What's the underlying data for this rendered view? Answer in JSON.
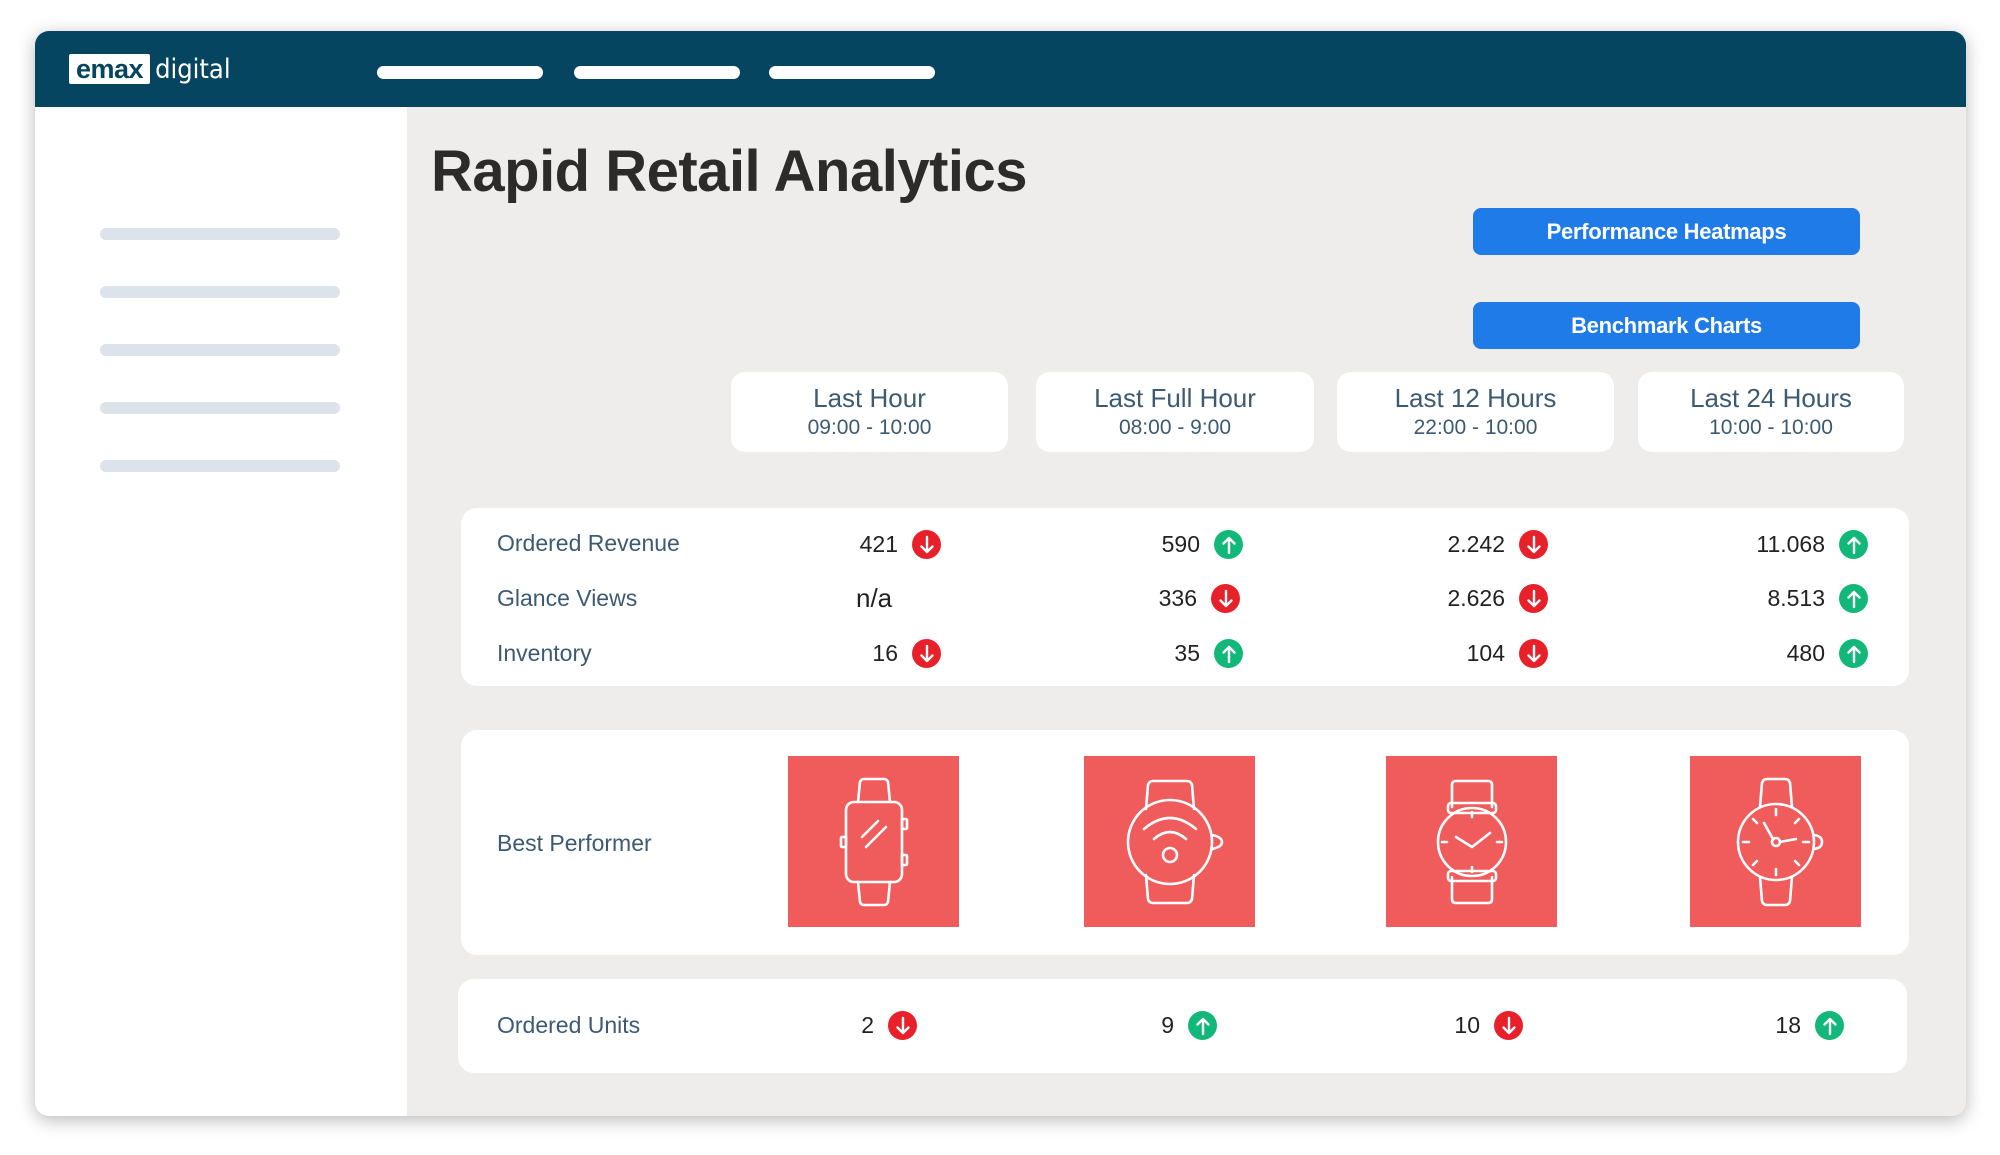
{
  "brand": {
    "logo_primary": "emax",
    "logo_secondary": "digital"
  },
  "page": {
    "title": "Rapid Retail Analytics"
  },
  "buttons": {
    "heatmaps": "Performance Heatmaps",
    "benchmarks": "Benchmark Charts"
  },
  "columns": [
    {
      "label": "Last Hour",
      "range": "09:00 - 10:00"
    },
    {
      "label": "Last Full Hour",
      "range": "08:00 - 9:00"
    },
    {
      "label": "Last 12 Hours",
      "range": "22:00 - 10:00"
    },
    {
      "label": "Last 24 Hours",
      "range": "10:00 - 10:00"
    }
  ],
  "metrics": {
    "ordered_revenue": {
      "label": "Ordered Revenue",
      "values": [
        "421",
        "590",
        "2.242",
        "11.068"
      ],
      "trends": [
        "down",
        "up",
        "down",
        "up"
      ]
    },
    "glance_views": {
      "label": "Glance Views",
      "values": [
        "n/a",
        "336",
        "2.626",
        "8.513"
      ],
      "trends": [
        "none",
        "down",
        "down",
        "up"
      ]
    },
    "inventory": {
      "label": "Inventory",
      "values": [
        "16",
        "35",
        "104",
        "480"
      ],
      "trends": [
        "down",
        "up",
        "down",
        "up"
      ]
    }
  },
  "best_performer": {
    "label": "Best Performer",
    "icons": [
      "smartwatch-icon",
      "fitness-watch-icon",
      "analog-watch-icon",
      "classic-watch-icon"
    ]
  },
  "ordered_units": {
    "label": "Ordered Units",
    "values": [
      "2",
      "9",
      "10",
      "18"
    ],
    "trends": [
      "down",
      "up",
      "down",
      "up"
    ]
  },
  "colors": {
    "topbar": "#06455f",
    "button": "#1e7be8",
    "trend_down": "#e8202a",
    "trend_up": "#12b879",
    "tile": "#f05c5b"
  }
}
